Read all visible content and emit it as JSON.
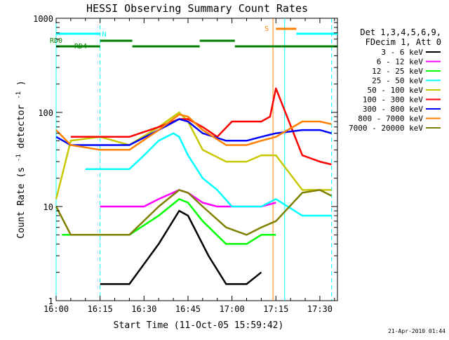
{
  "chart_data": {
    "type": "line",
    "title": "HESSI Observing Summary Count Rates",
    "xlabel": "Start Time (11-Oct-05 15:59:42)",
    "ylabel_main": "Count Rate (s",
    "ylabel_sup1": "-1",
    "ylabel_mid": " detector",
    "ylabel_sup2": "-1",
    "ylabel_end": ")",
    "yscale": "log",
    "ylim": [
      1,
      1000
    ],
    "xlim": [
      "16:00",
      "17:36"
    ],
    "x_ticks": [
      "16:00",
      "16:15",
      "16:30",
      "16:45",
      "17:00",
      "17:15",
      "17:30"
    ],
    "y_ticks": [
      "1",
      "10",
      "100",
      "1000"
    ],
    "legend_header": [
      "Det 1,3,4,5,6,9,",
      "FDecim 1, Att 0"
    ],
    "legend_position": "right",
    "footer": "21-Apr-2010 01:44",
    "annotations": {
      "n_label": "N",
      "s_label": "S",
      "rd0_label": "RD0",
      "rd4_label": "RD4"
    },
    "series": [
      {
        "name": "3 - 6 keV",
        "color": "#000000",
        "x": [
          "16:00",
          "16:15",
          "16:25",
          "16:35",
          "16:42",
          "16:45",
          "16:52",
          "16:58",
          "17:05",
          "17:10",
          "17:15"
        ],
        "values": [
          null,
          1.5,
          1.5,
          4,
          9,
          8,
          3,
          1.5,
          1.5,
          2,
          null
        ]
      },
      {
        "name": "6 - 12 keV",
        "color": "#ff00ff",
        "x": [
          "16:00",
          "16:15",
          "16:25",
          "16:30",
          "16:35",
          "16:42",
          "16:45",
          "16:50",
          "16:55",
          "17:00",
          "17:05",
          "17:10",
          "17:15"
        ],
        "values": [
          null,
          10,
          10,
          10,
          12,
          15,
          14,
          11,
          10,
          10,
          10,
          10,
          11
        ]
      },
      {
        "name": "12 - 25 keV",
        "color": "#00ff00",
        "x": [
          "16:00",
          "16:02",
          "16:15",
          "16:25",
          "16:35",
          "16:42",
          "16:45",
          "16:50",
          "16:58",
          "17:05",
          "17:10",
          "17:15"
        ],
        "values": [
          null,
          5,
          5,
          5,
          8,
          12,
          11,
          7,
          4,
          4,
          5,
          5
        ]
      },
      {
        "name": "25 - 50 keV",
        "color": "#00ffff",
        "x": [
          "16:00",
          "16:10",
          "16:25",
          "16:30",
          "16:35",
          "16:40",
          "16:42",
          "16:45",
          "16:50",
          "16:55",
          "17:00",
          "17:05",
          "17:10",
          "17:15",
          "17:24",
          "17:30",
          "17:34"
        ],
        "values": [
          null,
          25,
          25,
          35,
          50,
          60,
          55,
          35,
          20,
          15,
          10,
          10,
          10,
          12,
          8,
          8,
          8
        ]
      },
      {
        "name": "50 - 100 keV",
        "color": "#c8c800",
        "x": [
          "16:00",
          "16:05",
          "16:15",
          "16:25",
          "16:35",
          "16:42",
          "16:45",
          "16:50",
          "16:58",
          "17:05",
          "17:10",
          "17:15",
          "17:24",
          "17:30",
          "17:34"
        ],
        "values": [
          12,
          50,
          55,
          45,
          70,
          100,
          80,
          40,
          30,
          30,
          35,
          35,
          15,
          15,
          15
        ]
      },
      {
        "name": "100 - 300 keV",
        "color": "#ff0000",
        "x": [
          "16:00",
          "16:05",
          "16:15",
          "16:25",
          "16:35",
          "16:42",
          "16:45",
          "16:50",
          "16:55",
          "17:00",
          "17:05",
          "17:10",
          "17:13",
          "17:15",
          "17:24",
          "17:30",
          "17:34"
        ],
        "values": [
          null,
          55,
          55,
          55,
          70,
          85,
          85,
          70,
          55,
          80,
          80,
          80,
          90,
          180,
          35,
          30,
          28
        ]
      },
      {
        "name": "300 - 800 keV",
        "color": "#0000ff",
        "x": [
          "16:00",
          "16:05",
          "16:15",
          "16:25",
          "16:35",
          "16:42",
          "16:45",
          "16:50",
          "16:58",
          "17:05",
          "17:10",
          "17:15",
          "17:24",
          "17:30",
          "17:34"
        ],
        "values": [
          55,
          45,
          45,
          45,
          65,
          85,
          80,
          60,
          50,
          50,
          55,
          60,
          65,
          65,
          60
        ]
      },
      {
        "name": "800 - 7000 keV",
        "color": "#ff8000",
        "x": [
          "16:00",
          "16:05",
          "16:15",
          "16:25",
          "16:35",
          "16:42",
          "16:45",
          "16:50",
          "16:58",
          "17:05",
          "17:10",
          "17:15",
          "17:24",
          "17:30",
          "17:34"
        ],
        "values": [
          65,
          45,
          40,
          40,
          65,
          95,
          90,
          65,
          45,
          45,
          50,
          55,
          80,
          80,
          75
        ]
      },
      {
        "name": "7000 - 20000 keV",
        "color": "#808000",
        "x": [
          "16:00",
          "16:05",
          "16:15",
          "16:25",
          "16:35",
          "16:42",
          "16:45",
          "16:50",
          "16:58",
          "17:05",
          "17:10",
          "17:15",
          "17:24",
          "17:30",
          "17:34"
        ],
        "values": [
          10,
          5,
          5,
          5,
          10,
          15,
          14,
          10,
          6,
          5,
          6,
          7,
          14,
          15,
          13
        ]
      }
    ]
  }
}
